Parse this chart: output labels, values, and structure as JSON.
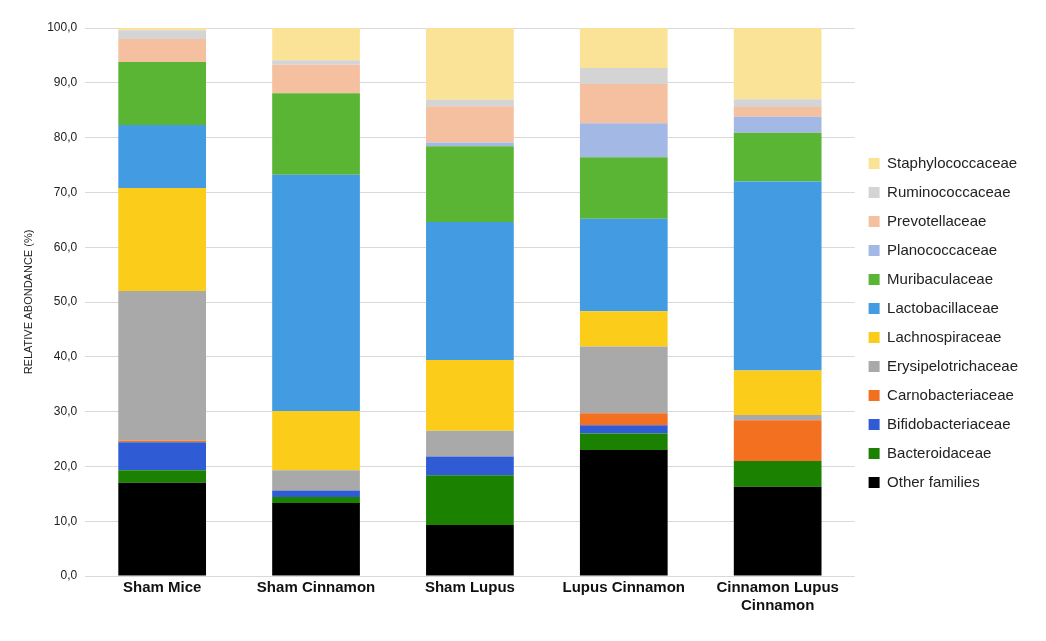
{
  "chart_data": {
    "type": "bar",
    "stacked": true,
    "ylabel": "RELATIVE ABONDANCE (%)",
    "categories": [
      "Sham Mice",
      "Sham Cinnamon",
      "Sham Lupus",
      "Lupus Cinnamon",
      "Cinnamon Lupus Cinnamon"
    ],
    "ylim": [
      0,
      100
    ],
    "yticks": [
      {
        "value": 0,
        "label": "0,0"
      },
      {
        "value": 10,
        "label": "10,0"
      },
      {
        "value": 20,
        "label": "20,0"
      },
      {
        "value": 30,
        "label": "30,0"
      },
      {
        "value": 40,
        "label": "40,0"
      },
      {
        "value": 50,
        "label": "50,0"
      },
      {
        "value": 60,
        "label": "60,0"
      },
      {
        "value": 70,
        "label": "70,0"
      },
      {
        "value": 80,
        "label": "80,0"
      },
      {
        "value": 90,
        "label": "90,0"
      },
      {
        "value": 100,
        "label": "100,0"
      }
    ],
    "grid": "y",
    "legend": "right",
    "series": [
      {
        "name": "Other families",
        "color": "#000000",
        "values": [
          17.0,
          13.3,
          9.3,
          23.0,
          16.3
        ]
      },
      {
        "name": "Bacteroidaceae",
        "color": "#1a8200",
        "values": [
          2.3,
          1.1,
          9.1,
          3.0,
          4.7
        ]
      },
      {
        "name": "Bifidobacteriaceae",
        "color": "#2f5cd4",
        "values": [
          5.1,
          1.2,
          3.4,
          1.5,
          0
        ]
      },
      {
        "name": "Carnobacteriaceae",
        "color": "#f37021",
        "values": [
          0.3,
          0,
          0,
          2.2,
          7.4
        ]
      },
      {
        "name": "Erysipelotrichaceae",
        "color": "#a9a9a9",
        "values": [
          27.3,
          3.7,
          4.7,
          12.2,
          1.0
        ]
      },
      {
        "name": "Lachnospiraceae",
        "color": "#fbcd1a",
        "values": [
          18.8,
          10.8,
          12.9,
          6.4,
          8.1
        ]
      },
      {
        "name": "Lactobacillaceae",
        "color": "#439be2",
        "values": [
          11.5,
          43.1,
          25.2,
          16.9,
          34.5
        ]
      },
      {
        "name": "Muribaculaceae",
        "color": "#5bb535",
        "values": [
          11.5,
          14.9,
          13.8,
          11.2,
          8.9
        ]
      },
      {
        "name": "Planococcaceae",
        "color": "#a4b8e6",
        "values": [
          0,
          0,
          0.7,
          6.2,
          2.9
        ]
      },
      {
        "name": "Prevotellaceae",
        "color": "#f5c0a0",
        "values": [
          4.2,
          5.2,
          6.6,
          7.2,
          1.8
        ]
      },
      {
        "name": "Ruminococcaceae",
        "color": "#d4d4d4",
        "values": [
          1.6,
          0.8,
          1.2,
          2.9,
          1.4
        ]
      },
      {
        "name": "Staphylococcaceae",
        "color": "#fae397",
        "values": [
          0.4,
          5.9,
          13.1,
          7.3,
          13.0
        ]
      }
    ]
  }
}
